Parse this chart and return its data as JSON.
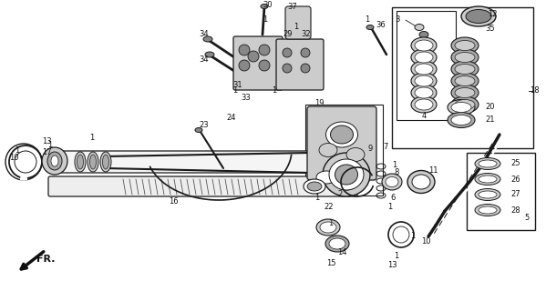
{
  "bg_color": "#ffffff",
  "fig_width": 5.99,
  "fig_height": 3.2,
  "dpi": 100,
  "line_color": "#1a1a1a",
  "gray1": "#aaaaaa",
  "gray2": "#cccccc",
  "gray3": "#888888",
  "dark": "#111111"
}
